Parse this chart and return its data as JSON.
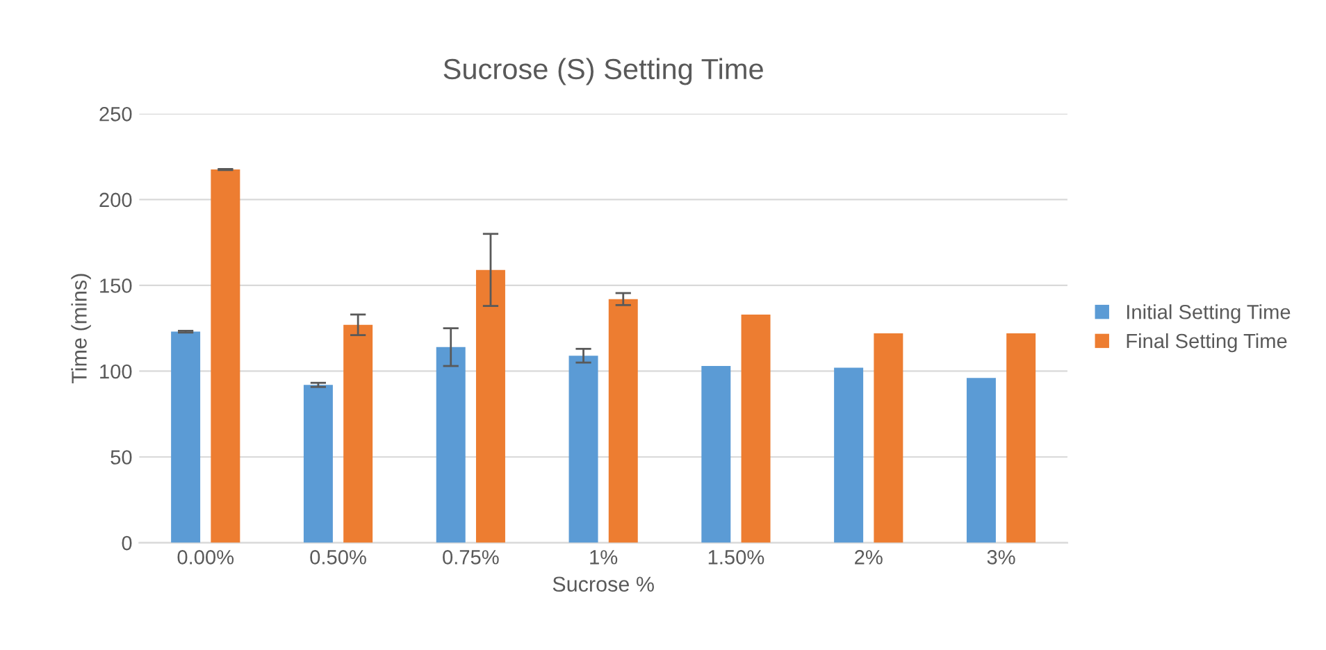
{
  "chart_data": {
    "type": "bar",
    "title": "Sucrose (S) Setting Time",
    "xlabel": "Sucrose %",
    "ylabel": "Time (mins)",
    "categories": [
      "0.00%",
      "0.50%",
      "0.75%",
      "1%",
      "1.50%",
      "2%",
      "3%"
    ],
    "series": [
      {
        "name": "Initial Setting Time",
        "color": "#5b9bd5",
        "values": [
          123,
          92,
          114,
          109,
          103,
          102,
          96
        ],
        "errors": [
          0.5,
          1.2,
          11,
          4,
          null,
          null,
          null
        ]
      },
      {
        "name": "Final Setting Time",
        "color": "#ed7d31",
        "values": [
          217.5,
          127,
          159,
          142,
          133,
          122,
          122
        ],
        "errors": [
          0.3,
          6,
          21,
          3.5,
          null,
          null,
          null
        ]
      }
    ],
    "ylim": [
      0,
      250
    ],
    "yticks": [
      0,
      50,
      100,
      150,
      200,
      250
    ],
    "grid": "y",
    "legend": "right"
  }
}
